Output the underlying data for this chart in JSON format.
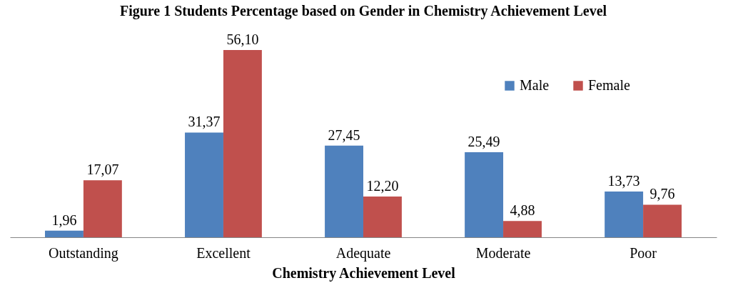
{
  "chart_data": {
    "type": "bar",
    "title": "Figure 1 Students Percentage based on Gender in Chemistry Achievement Level",
    "xlabel": "Chemistry  Achievement Level",
    "categories": [
      "Outstanding",
      "Excellent",
      "Adequate",
      "Moderate",
      "Poor"
    ],
    "series": [
      {
        "name": "Male",
        "color": "#4f81bd",
        "values": [
          1.96,
          31.37,
          27.45,
          25.49,
          13.73
        ],
        "value_labels": [
          "1,96",
          "31,37",
          "27,45",
          "25,49",
          "13,73"
        ]
      },
      {
        "name": "Female",
        "color": "#c0504d",
        "values": [
          17.07,
          56.1,
          12.2,
          4.88,
          9.76
        ],
        "value_labels": [
          "17,07",
          "56,10",
          "12,20",
          "4,88",
          "9,76"
        ]
      }
    ],
    "legend": "top right",
    "grid": false
  }
}
